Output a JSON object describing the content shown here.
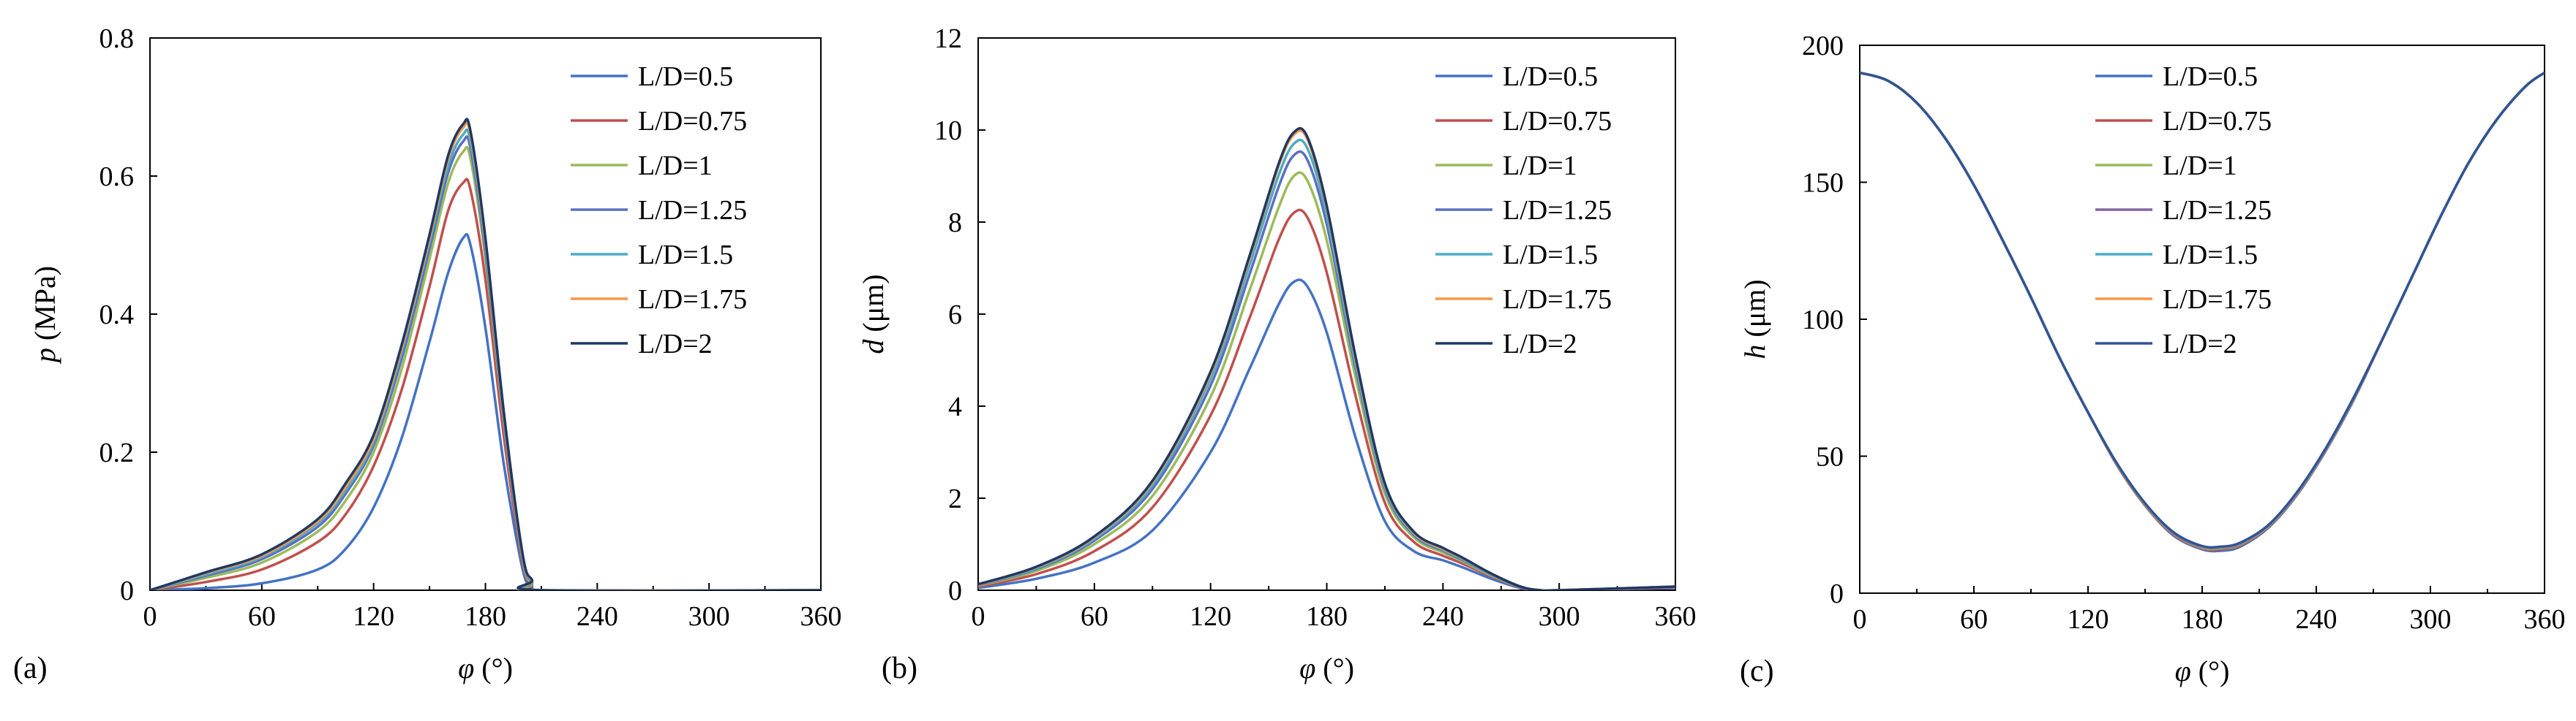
{
  "chart_data": [
    {
      "type": "line",
      "panel_label": "(a)",
      "ylabel_var": "p",
      "ylabel_unit": " (MPa)",
      "xlabel_var": "φ",
      "xlabel_unit": " (°)",
      "xlim": [
        0,
        360
      ],
      "ylim": [
        0,
        0.8
      ],
      "xticks": [
        0,
        60,
        120,
        180,
        240,
        300,
        360
      ],
      "yticks": [
        0,
        0.2,
        0.4,
        0.6,
        0.8
      ],
      "legend": "top-right",
      "series": [
        {
          "name": "L/D=0.5",
          "color": "#4472C4",
          "x": [
            0,
            30,
            60,
            90,
            105,
            120,
            135,
            150,
            160,
            168,
            172,
            180,
            190,
            200,
            205,
            210,
            360
          ],
          "values": [
            0,
            0.003,
            0.01,
            0.03,
            0.06,
            0.12,
            0.22,
            0.36,
            0.46,
            0.51,
            0.5,
            0.38,
            0.18,
            0.03,
            0.005,
            0,
            0
          ]
        },
        {
          "name": "L/D=0.75",
          "color": "#C0504D",
          "x": [
            0,
            30,
            60,
            90,
            105,
            120,
            135,
            150,
            160,
            168,
            172,
            180,
            190,
            200,
            205,
            210,
            360
          ],
          "values": [
            0,
            0.012,
            0.03,
            0.07,
            0.11,
            0.18,
            0.29,
            0.44,
            0.55,
            0.59,
            0.58,
            0.45,
            0.22,
            0.04,
            0.008,
            0,
            0
          ]
        },
        {
          "name": "L/D=1",
          "color": "#9BBB59",
          "x": [
            0,
            30,
            60,
            90,
            105,
            120,
            135,
            150,
            160,
            168,
            172,
            180,
            190,
            200,
            205,
            210,
            360
          ],
          "values": [
            0,
            0.018,
            0.04,
            0.085,
            0.13,
            0.2,
            0.32,
            0.48,
            0.59,
            0.635,
            0.625,
            0.48,
            0.24,
            0.045,
            0.01,
            0,
            0
          ]
        },
        {
          "name": "L/D=1.25",
          "color": "#5B6FC0",
          "x": [
            0,
            30,
            60,
            90,
            105,
            120,
            135,
            150,
            160,
            168,
            172,
            180,
            190,
            200,
            205,
            210,
            360
          ],
          "values": [
            0,
            0.021,
            0.045,
            0.092,
            0.14,
            0.21,
            0.335,
            0.495,
            0.605,
            0.65,
            0.64,
            0.49,
            0.245,
            0.048,
            0.012,
            0,
            0
          ]
        },
        {
          "name": "L/D=1.5",
          "color": "#4BACC6",
          "x": [
            0,
            30,
            60,
            90,
            105,
            120,
            135,
            150,
            160,
            168,
            172,
            180,
            190,
            200,
            205,
            210,
            360
          ],
          "values": [
            0,
            0.023,
            0.048,
            0.097,
            0.145,
            0.215,
            0.345,
            0.505,
            0.615,
            0.66,
            0.65,
            0.5,
            0.25,
            0.05,
            0.013,
            0,
            0
          ]
        },
        {
          "name": "L/D=1.75",
          "color": "#F79646",
          "x": [
            0,
            30,
            60,
            90,
            105,
            120,
            135,
            150,
            160,
            168,
            172,
            180,
            190,
            200,
            205,
            210,
            360
          ],
          "values": [
            0,
            0.025,
            0.05,
            0.1,
            0.15,
            0.22,
            0.35,
            0.51,
            0.625,
            0.67,
            0.66,
            0.505,
            0.253,
            0.051,
            0.014,
            0,
            0
          ]
        },
        {
          "name": "L/D=2",
          "color": "#1F3864",
          "x": [
            0,
            30,
            60,
            90,
            105,
            120,
            135,
            150,
            160,
            168,
            172,
            180,
            190,
            200,
            205,
            210,
            360
          ],
          "values": [
            0,
            0.026,
            0.052,
            0.103,
            0.155,
            0.225,
            0.355,
            0.515,
            0.63,
            0.675,
            0.665,
            0.51,
            0.255,
            0.052,
            0.015,
            0,
            0
          ]
        }
      ]
    },
    {
      "type": "line",
      "panel_label": "(b)",
      "ylabel_var": "d",
      "ylabel_unit": " (μm)",
      "xlabel_var": "φ",
      "xlabel_unit": " (°)",
      "xlim": [
        0,
        360
      ],
      "ylim": [
        0,
        12
      ],
      "xticks": [
        0,
        60,
        120,
        180,
        240,
        300,
        360
      ],
      "yticks": [
        0,
        2,
        4,
        6,
        8,
        10,
        12
      ],
      "legend": "top-right",
      "series": [
        {
          "name": "L/D=0.5",
          "color": "#4472C4",
          "x": [
            0,
            30,
            60,
            90,
            120,
            140,
            155,
            163,
            170,
            180,
            195,
            210,
            225,
            240,
            250,
            265,
            280,
            290,
            300,
            360
          ],
          "values": [
            0.05,
            0.25,
            0.6,
            1.3,
            3.0,
            4.8,
            6.2,
            6.7,
            6.6,
            5.6,
            3.3,
            1.5,
            0.85,
            0.65,
            0.5,
            0.25,
            0.05,
            0,
            0,
            0.05
          ]
        },
        {
          "name": "L/D=0.75",
          "color": "#C0504D",
          "x": [
            0,
            30,
            60,
            90,
            120,
            140,
            155,
            163,
            170,
            180,
            195,
            210,
            225,
            240,
            250,
            265,
            280,
            290,
            300,
            360
          ],
          "values": [
            0.08,
            0.35,
            0.85,
            1.8,
            3.8,
            5.9,
            7.6,
            8.2,
            8.1,
            6.9,
            4.2,
            1.9,
            1.05,
            0.75,
            0.58,
            0.3,
            0.06,
            0,
            0,
            0.06
          ]
        },
        {
          "name": "L/D=1",
          "color": "#9BBB59",
          "x": [
            0,
            30,
            60,
            90,
            120,
            140,
            155,
            163,
            170,
            180,
            195,
            210,
            225,
            240,
            250,
            265,
            280,
            290,
            300,
            360
          ],
          "values": [
            0.1,
            0.42,
            1.0,
            2.05,
            4.2,
            6.5,
            8.3,
            9.0,
            8.9,
            7.6,
            4.6,
            2.1,
            1.15,
            0.82,
            0.63,
            0.32,
            0.07,
            0,
            0,
            0.07
          ]
        },
        {
          "name": "L/D=1.25",
          "color": "#5B6FC0",
          "x": [
            0,
            30,
            60,
            90,
            120,
            140,
            155,
            163,
            170,
            180,
            195,
            210,
            225,
            240,
            250,
            265,
            280,
            290,
            300,
            360
          ],
          "values": [
            0.11,
            0.46,
            1.08,
            2.2,
            4.45,
            6.85,
            8.75,
            9.45,
            9.35,
            7.95,
            4.8,
            2.2,
            1.2,
            0.86,
            0.66,
            0.34,
            0.07,
            0,
            0,
            0.07
          ]
        },
        {
          "name": "L/D=1.5",
          "color": "#4BACC6",
          "x": [
            0,
            30,
            60,
            90,
            120,
            140,
            155,
            163,
            170,
            180,
            195,
            210,
            225,
            240,
            250,
            265,
            280,
            290,
            300,
            360
          ],
          "values": [
            0.12,
            0.48,
            1.12,
            2.28,
            4.6,
            7.05,
            9.0,
            9.7,
            9.6,
            8.15,
            4.9,
            2.25,
            1.23,
            0.88,
            0.68,
            0.35,
            0.08,
            0,
            0,
            0.08
          ]
        },
        {
          "name": "L/D=1.75",
          "color": "#F79646",
          "x": [
            0,
            30,
            60,
            90,
            120,
            140,
            155,
            163,
            170,
            180,
            195,
            210,
            225,
            240,
            250,
            265,
            280,
            290,
            300,
            360
          ],
          "values": [
            0.12,
            0.5,
            1.15,
            2.35,
            4.7,
            7.2,
            9.2,
            9.9,
            9.8,
            8.3,
            5.0,
            2.3,
            1.25,
            0.9,
            0.7,
            0.36,
            0.08,
            0,
            0,
            0.08
          ]
        },
        {
          "name": "L/D=2",
          "color": "#1F3864",
          "x": [
            0,
            30,
            60,
            90,
            120,
            140,
            155,
            163,
            170,
            180,
            195,
            210,
            225,
            240,
            250,
            265,
            280,
            290,
            300,
            360
          ],
          "values": [
            0.13,
            0.51,
            1.17,
            2.38,
            4.75,
            7.25,
            9.25,
            9.95,
            9.85,
            8.35,
            5.05,
            2.32,
            1.27,
            0.92,
            0.71,
            0.36,
            0.08,
            0,
            0,
            0.08
          ]
        }
      ]
    },
    {
      "type": "line",
      "panel_label": "(c)",
      "ylabel_var": "h",
      "ylabel_unit": " (μm)",
      "xlabel_var": "φ",
      "xlabel_unit": " (°)",
      "xlim": [
        0,
        360
      ],
      "ylim": [
        0,
        200
      ],
      "xticks": [
        0,
        60,
        120,
        180,
        240,
        300,
        360
      ],
      "yticks": [
        0,
        50,
        100,
        150,
        200
      ],
      "legend": "top-center",
      "series": [
        {
          "name": "L/D=0.5",
          "color": "#4472C4",
          "x": [
            0,
            15,
            30,
            45,
            60,
            75,
            90,
            105,
            120,
            135,
            150,
            165,
            180,
            190,
            200,
            215,
            230,
            245,
            260,
            275,
            290,
            305,
            320,
            335,
            350,
            360
          ],
          "values": [
            190,
            187,
            179,
            166,
            149,
            129,
            108,
            86,
            66,
            47,
            32,
            21,
            16,
            15.5,
            17,
            24,
            36,
            52,
            71,
            93,
            115,
            137,
            157,
            173,
            185,
            190
          ]
        },
        {
          "name": "L/D=0.75",
          "color": "#C0504D",
          "x": [
            0,
            15,
            30,
            45,
            60,
            75,
            90,
            105,
            120,
            135,
            150,
            165,
            180,
            190,
            200,
            215,
            230,
            245,
            260,
            275,
            290,
            305,
            320,
            335,
            350,
            360
          ],
          "values": [
            190,
            187,
            179,
            166,
            149,
            129,
            108,
            86,
            66,
            47,
            32,
            21.3,
            16.3,
            16,
            17.5,
            24.3,
            36.3,
            52.3,
            71.3,
            93,
            115,
            137,
            157,
            173,
            185,
            190
          ]
        },
        {
          "name": "L/D=1",
          "color": "#9BBB59",
          "x": [
            0,
            15,
            30,
            45,
            60,
            75,
            90,
            105,
            120,
            135,
            150,
            165,
            180,
            190,
            200,
            215,
            230,
            245,
            260,
            275,
            290,
            305,
            320,
            335,
            350,
            360
          ],
          "values": [
            190,
            187,
            179,
            166,
            149,
            129,
            108,
            86,
            66,
            47.2,
            32.3,
            21.6,
            16.6,
            16.4,
            17.8,
            24.5,
            36.5,
            52.5,
            71.5,
            93,
            115,
            137,
            157,
            173,
            185,
            190
          ]
        },
        {
          "name": "L/D=1.25",
          "color": "#8064A2",
          "x": [
            0,
            15,
            30,
            45,
            60,
            75,
            90,
            105,
            120,
            135,
            150,
            165,
            180,
            190,
            200,
            215,
            230,
            245,
            260,
            275,
            290,
            305,
            320,
            335,
            350,
            360
          ],
          "values": [
            190,
            187,
            179,
            166,
            149,
            129,
            108,
            86,
            66,
            47.3,
            32.5,
            21.8,
            16.8,
            16.6,
            18,
            24.7,
            36.7,
            52.6,
            71.6,
            93,
            115,
            137,
            157,
            173,
            185,
            190
          ]
        },
        {
          "name": "L/D=1.5",
          "color": "#4BACC6",
          "x": [
            0,
            15,
            30,
            45,
            60,
            75,
            90,
            105,
            120,
            135,
            150,
            165,
            180,
            190,
            200,
            215,
            230,
            245,
            260,
            275,
            290,
            305,
            320,
            335,
            350,
            360
          ],
          "values": [
            190,
            187,
            179,
            166,
            149,
            129,
            108,
            86,
            66,
            47.4,
            32.6,
            22,
            17,
            16.8,
            18.2,
            24.8,
            36.8,
            52.7,
            71.7,
            93,
            115,
            137,
            157,
            173,
            185,
            190
          ]
        },
        {
          "name": "L/D=1.75",
          "color": "#F79646",
          "x": [
            0,
            15,
            30,
            45,
            60,
            75,
            90,
            105,
            120,
            135,
            150,
            165,
            180,
            190,
            200,
            215,
            230,
            245,
            260,
            275,
            290,
            305,
            320,
            335,
            350,
            360
          ],
          "values": [
            190,
            187,
            179,
            166,
            149,
            129,
            108,
            86,
            66,
            47.5,
            32.7,
            22.1,
            17.1,
            16.9,
            18.3,
            24.9,
            36.9,
            52.8,
            71.8,
            93,
            115,
            137,
            157,
            173,
            185,
            190
          ]
        },
        {
          "name": "L/D=2",
          "color": "#2F5597",
          "x": [
            0,
            15,
            30,
            45,
            60,
            75,
            90,
            105,
            120,
            135,
            150,
            165,
            180,
            190,
            200,
            215,
            230,
            245,
            260,
            275,
            290,
            305,
            320,
            335,
            350,
            360
          ],
          "values": [
            190,
            187,
            179,
            166,
            149,
            129,
            108,
            86,
            66,
            47.6,
            32.8,
            22.2,
            17.2,
            17,
            18.4,
            25,
            37,
            52.9,
            71.9,
            93,
            115,
            137,
            157,
            173,
            185,
            190
          ]
        }
      ]
    }
  ]
}
